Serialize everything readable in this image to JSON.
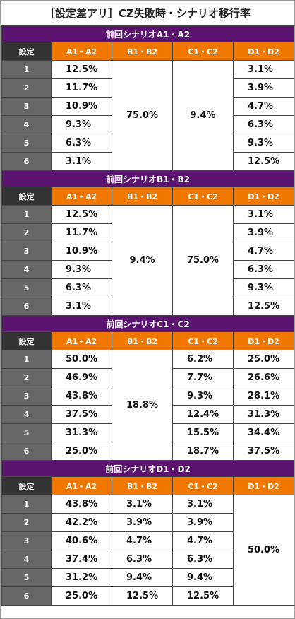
{
  "title": "［設定差アリ］CZ失敗時・シナリオ移行率",
  "sections": [
    {
      "title": "前回シナリオA1・A2",
      "columns": [
        {
          "header": "設定",
          "values": [
            "1",
            "2",
            "3",
            "4",
            "5",
            "6"
          ]
        },
        {
          "header": "A1・A2",
          "values": [
            "12.5%",
            "11.7%",
            "10.9%",
            "9.3%",
            "6.3%",
            "3.1%"
          ]
        },
        {
          "header": "B1・B2",
          "values": [
            "75.0%"
          ]
        },
        {
          "header": "C1・C2",
          "values": [
            "9.4%"
          ]
        },
        {
          "header": "D1・D2",
          "values": [
            "3.1%",
            "3.9%",
            "4.7%",
            "6.3%",
            "9.3%",
            "12.5%"
          ]
        }
      ]
    },
    {
      "title": "前回シナリオB1・B2",
      "columns": [
        {
          "header": "設定",
          "values": [
            "1",
            "2",
            "3",
            "4",
            "5",
            "6"
          ]
        },
        {
          "header": "A1・A2",
          "values": [
            "12.5%",
            "11.7%",
            "10.9%",
            "9.3%",
            "6.3%",
            "3.1%"
          ]
        },
        {
          "header": "B1・B2",
          "values": [
            "9.4%"
          ]
        },
        {
          "header": "C1・C2",
          "values": [
            "75.0%"
          ]
        },
        {
          "header": "D1・D2",
          "values": [
            "3.1%",
            "3.9%",
            "4.7%",
            "6.3%",
            "9.3%",
            "12.5%"
          ]
        }
      ]
    },
    {
      "title": "前回シナリオC1・C2",
      "columns": [
        {
          "header": "設定",
          "values": [
            "1",
            "2",
            "3",
            "4",
            "5",
            "6"
          ]
        },
        {
          "header": "A1・A2",
          "values": [
            "50.0%",
            "46.9%",
            "43.8%",
            "37.5%",
            "31.3%",
            "25.0%"
          ]
        },
        {
          "header": "B1・B2",
          "values": [
            "18.8%"
          ]
        },
        {
          "header": "C1・C2",
          "values": [
            "6.2%",
            "7.7%",
            "9.3%",
            "12.4%",
            "15.5%",
            "18.7%"
          ]
        },
        {
          "header": "D1・D2",
          "values": [
            "25.0%",
            "26.6%",
            "28.1%",
            "31.3%",
            "34.4%",
            "37.5%"
          ]
        }
      ]
    },
    {
      "title": "前回シナリオD1・D2",
      "columns": [
        {
          "header": "設定",
          "values": [
            "1",
            "2",
            "3",
            "4",
            "5",
            "6"
          ]
        },
        {
          "header": "A1・A2",
          "values": [
            "43.8%",
            "42.2%",
            "40.6%",
            "37.4%",
            "31.2%",
            "25.0%"
          ]
        },
        {
          "header": "B1・B2",
          "values": [
            "3.1%",
            "3.9%",
            "4.7%",
            "6.3%",
            "9.4%",
            "12.5%"
          ]
        },
        {
          "header": "C1・C2",
          "values": [
            "3.1%",
            "3.9%",
            "4.7%",
            "6.3%",
            "9.4%",
            "12.5%"
          ]
        },
        {
          "header": "D1・D2",
          "values": [
            "50.0%"
          ]
        }
      ]
    }
  ]
}
